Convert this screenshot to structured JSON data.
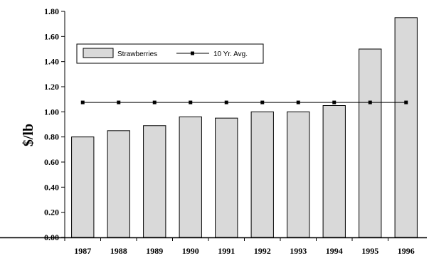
{
  "chart_data": {
    "type": "bar",
    "categories": [
      "1987",
      "1988",
      "1989",
      "1990",
      "1991",
      "1992",
      "1993",
      "1994",
      "1995",
      "1996"
    ],
    "series": [
      {
        "name": "Strawberries",
        "type": "bar",
        "values": [
          0.8,
          0.85,
          0.89,
          0.96,
          0.95,
          1.0,
          1.0,
          1.05,
          1.5,
          1.75
        ],
        "color": "#d9d9d9"
      },
      {
        "name": "10 Yr. Avg.",
        "type": "line",
        "values": [
          1.075,
          1.075,
          1.075,
          1.075,
          1.075,
          1.075,
          1.075,
          1.075,
          1.075,
          1.075
        ],
        "color": "#000000"
      }
    ],
    "ylabel": "$/lb",
    "xlabel": "",
    "ylim": [
      0,
      1.8
    ],
    "yticks": [
      "0.00",
      "0.20",
      "0.40",
      "0.60",
      "0.80",
      "1.00",
      "1.20",
      "1.40",
      "1.60",
      "1.80"
    ],
    "grid": false,
    "legend": "top-left"
  }
}
